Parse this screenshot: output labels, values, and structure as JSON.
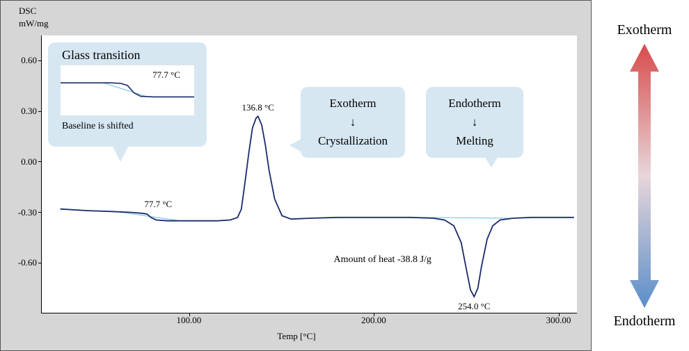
{
  "chart": {
    "type": "line",
    "y_axis": {
      "label_top": "DSC",
      "label_bottom": "mW/mg",
      "ticks": [
        -0.6,
        -0.3,
        0.0,
        0.3,
        0.6
      ],
      "lim": [
        -0.9,
        0.75
      ],
      "fontsize": 13
    },
    "x_axis": {
      "label": "Temp  [°C]",
      "ticks": [
        100.0,
        200.0,
        300.0
      ],
      "lim": [
        20,
        310
      ],
      "fontsize": 13
    },
    "background_color": "#ffffff",
    "panel_color": "#d6d6d6",
    "line_color": "#1a2a6c",
    "baseline_color": "#7fc7dd",
    "line_width": 1.8,
    "curve": [
      [
        30,
        -0.28
      ],
      [
        45,
        -0.29
      ],
      [
        58,
        -0.295
      ],
      [
        68,
        -0.3
      ],
      [
        74,
        -0.305
      ],
      [
        77,
        -0.31
      ],
      [
        79,
        -0.33
      ],
      [
        82,
        -0.345
      ],
      [
        88,
        -0.35
      ],
      [
        95,
        -0.35
      ],
      [
        105,
        -0.35
      ],
      [
        115,
        -0.35
      ],
      [
        122,
        -0.345
      ],
      [
        126,
        -0.33
      ],
      [
        128,
        -0.28
      ],
      [
        130,
        -0.12
      ],
      [
        132,
        0.05
      ],
      [
        134,
        0.2
      ],
      [
        136,
        0.26
      ],
      [
        137,
        0.27
      ],
      [
        139,
        0.22
      ],
      [
        141,
        0.1
      ],
      [
        143,
        -0.05
      ],
      [
        146,
        -0.22
      ],
      [
        150,
        -0.32
      ],
      [
        155,
        -0.34
      ],
      [
        165,
        -0.335
      ],
      [
        180,
        -0.33
      ],
      [
        200,
        -0.33
      ],
      [
        220,
        -0.33
      ],
      [
        232,
        -0.335
      ],
      [
        238,
        -0.345
      ],
      [
        243,
        -0.38
      ],
      [
        247,
        -0.48
      ],
      [
        250,
        -0.65
      ],
      [
        252,
        -0.76
      ],
      [
        254,
        -0.8
      ],
      [
        256,
        -0.75
      ],
      [
        258,
        -0.62
      ],
      [
        261,
        -0.46
      ],
      [
        264,
        -0.38
      ],
      [
        268,
        -0.345
      ],
      [
        275,
        -0.335
      ],
      [
        285,
        -0.33
      ],
      [
        300,
        -0.33
      ],
      [
        308,
        -0.33
      ]
    ],
    "baseline_tg": [
      [
        60,
        -0.295
      ],
      [
        95,
        -0.35
      ]
    ],
    "baseline_melt": [
      [
        225,
        -0.33
      ],
      [
        275,
        -0.335
      ]
    ],
    "inset": {
      "title": "Glass transition",
      "temp_label": "77.7 °C",
      "caption": "Baseline is shifted",
      "bg": "#d7e7f2",
      "curve": [
        [
          0,
          0.35
        ],
        [
          0.25,
          0.35
        ],
        [
          0.38,
          0.35
        ],
        [
          0.45,
          0.36
        ],
        [
          0.5,
          0.4
        ],
        [
          0.55,
          0.55
        ],
        [
          0.6,
          0.62
        ],
        [
          0.7,
          0.63
        ],
        [
          0.85,
          0.63
        ],
        [
          1,
          0.63
        ]
      ]
    },
    "annotations": {
      "tg_label": "77.7 °C",
      "peak_label": "136.8 °C",
      "trough_label": "254.0 °C",
      "heat_label": "Amount of heat  -38.8 J/g"
    },
    "callouts": {
      "exo": {
        "line1": "Exotherm",
        "line2": "↓",
        "line3": "Crystallization",
        "bg": "#d7e7f2"
      },
      "endo": {
        "line1": "Endotherm",
        "line2": "↓",
        "line3": "Melting",
        "bg": "#d7e7f2"
      }
    }
  },
  "side": {
    "top_label": "Exotherm",
    "bottom_label": "Endotherm",
    "top_color": "#d84b4b",
    "mid_color": "#e8d6da",
    "bottom_color": "#5a8ec9",
    "fontsize": 20
  }
}
